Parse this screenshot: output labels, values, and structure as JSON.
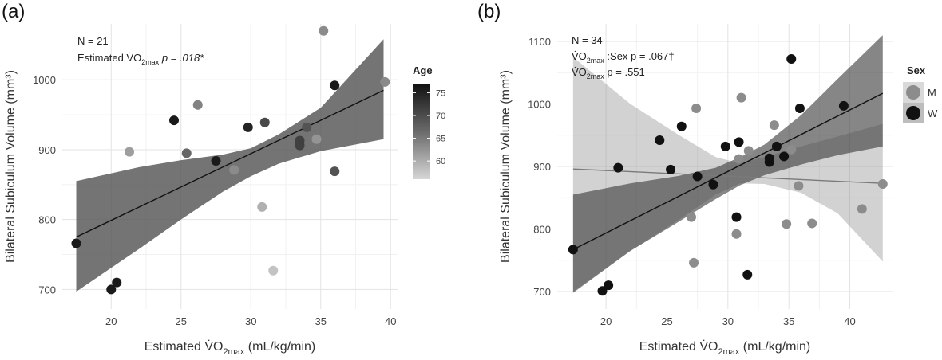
{
  "panel_a": {
    "label": "(a)",
    "annot_n": "N = 21",
    "annot_prefix": "Estimated V̇O",
    "annot_sub": "2max",
    "annot_p": " p = .018*",
    "legend": {
      "title": "Age",
      "ticks": [
        "75",
        "70",
        "65",
        "60"
      ],
      "min": 56,
      "max": 77
    }
  },
  "panel_b": {
    "label": "(b)",
    "annot_n": "N = 34",
    "annot2_prefix": "V̇O",
    "annot2_sub": "2max",
    "annot2_rest": " :Sex p = .067†",
    "annot3_prefix": "V̇O",
    "annot3_sub": "2max",
    "annot3_rest": " p = .551",
    "legend": {
      "title": "Sex",
      "items": [
        {
          "label": "M",
          "color": "#8c8c8c"
        },
        {
          "label": "W",
          "color": "#111111"
        }
      ]
    }
  },
  "chart_data": [
    {
      "type": "scatter",
      "panel": "a",
      "xlabel": "Estimated V̇O2max (mL/kg/min)",
      "ylabel": "Bilateral Subiculum Volume (mm³)",
      "xlim": [
        16.5,
        40.5
      ],
      "ylim": [
        672,
        1080
      ],
      "xticks": [
        "20",
        "25",
        "30",
        "35",
        "40"
      ],
      "yticks": [
        "700",
        "800",
        "900",
        "1000"
      ],
      "fit": {
        "x0": 17.5,
        "y0": 775,
        "x1": 39.5,
        "y1": 985
      },
      "band": [
        [
          17.5,
          697,
          855
        ],
        [
          22,
          758,
          875
        ],
        [
          25,
          800,
          885
        ],
        [
          28,
          840,
          893
        ],
        [
          30,
          862,
          902
        ],
        [
          32,
          880,
          922
        ],
        [
          35,
          898,
          960
        ],
        [
          39.5,
          915,
          1058
        ]
      ],
      "points": [
        {
          "x": 17.5,
          "y": 766,
          "age": 76
        },
        {
          "x": 20.0,
          "y": 700,
          "age": 76
        },
        {
          "x": 20.4,
          "y": 710,
          "age": 76
        },
        {
          "x": 21.3,
          "y": 897,
          "age": 62
        },
        {
          "x": 24.5,
          "y": 942,
          "age": 76
        },
        {
          "x": 25.4,
          "y": 895,
          "age": 68
        },
        {
          "x": 26.2,
          "y": 964,
          "age": 65
        },
        {
          "x": 27.5,
          "y": 884,
          "age": 76
        },
        {
          "x": 28.8,
          "y": 871,
          "age": 64
        },
        {
          "x": 29.8,
          "y": 932,
          "age": 75
        },
        {
          "x": 30.8,
          "y": 818,
          "age": 60
        },
        {
          "x": 31.0,
          "y": 939,
          "age": 71
        },
        {
          "x": 31.6,
          "y": 727,
          "age": 58
        },
        {
          "x": 33.5,
          "y": 906,
          "age": 72
        },
        {
          "x": 33.5,
          "y": 913,
          "age": 72
        },
        {
          "x": 34.0,
          "y": 932,
          "age": 70
        },
        {
          "x": 34.7,
          "y": 915,
          "age": 63
        },
        {
          "x": 35.2,
          "y": 1070,
          "age": 64
        },
        {
          "x": 36.0,
          "y": 992,
          "age": 76
        },
        {
          "x": 36.0,
          "y": 869,
          "age": 70
        },
        {
          "x": 39.6,
          "y": 997,
          "age": 64
        }
      ]
    },
    {
      "type": "scatter",
      "panel": "b",
      "xlabel": "Estimated V̇O2max (mL/kg/min)",
      "ylabel": "Bilateral Subiculum Volume (mm³)",
      "xlim": [
        16,
        43.5
      ],
      "ylim": [
        672,
        1128
      ],
      "xticks": [
        "20",
        "25",
        "30",
        "35",
        "40"
      ],
      "yticks": [
        "700",
        "800",
        "900",
        "1000",
        "1100"
      ],
      "fits": [
        {
          "sex": "M",
          "x0": 17.3,
          "y0": 896,
          "x1": 42.7,
          "y1": 873
        },
        {
          "sex": "W",
          "x0": 17.3,
          "y0": 767,
          "x1": 42.7,
          "y1": 1017
        }
      ],
      "bands": [
        {
          "sex": "M",
          "band": [
            [
              17.3,
              700,
              1075
            ],
            [
              22,
              765,
              1000
            ],
            [
              26,
              815,
              950
            ],
            [
              29,
              855,
              915
            ],
            [
              31,
              873,
              905
            ],
            [
              33,
              872,
              915
            ],
            [
              36,
              858,
              932
            ],
            [
              39,
              825,
              948
            ],
            [
              42.7,
              748,
              968
            ]
          ]
        },
        {
          "sex": "W",
          "band": [
            [
              17.3,
              698,
              855
            ],
            [
              22,
              765,
              873
            ],
            [
              26,
              812,
              885
            ],
            [
              29,
              848,
              898
            ],
            [
              31,
              870,
              915
            ],
            [
              33,
              886,
              935
            ],
            [
              36,
              903,
              982
            ],
            [
              39,
              918,
              1040
            ],
            [
              42.7,
              932,
              1110
            ]
          ]
        }
      ],
      "points": [
        {
          "x": 17.3,
          "y": 767,
          "sex": "W"
        },
        {
          "x": 19.7,
          "y": 701,
          "sex": "W"
        },
        {
          "x": 20.2,
          "y": 710,
          "sex": "W"
        },
        {
          "x": 21.0,
          "y": 898,
          "sex": "W"
        },
        {
          "x": 24.4,
          "y": 942,
          "sex": "W"
        },
        {
          "x": 25.3,
          "y": 895,
          "sex": "W"
        },
        {
          "x": 26.2,
          "y": 964,
          "sex": "W"
        },
        {
          "x": 27.0,
          "y": 819,
          "sex": "M"
        },
        {
          "x": 27.2,
          "y": 746,
          "sex": "M"
        },
        {
          "x": 27.4,
          "y": 993,
          "sex": "M"
        },
        {
          "x": 27.5,
          "y": 884,
          "sex": "W"
        },
        {
          "x": 28.8,
          "y": 871,
          "sex": "W"
        },
        {
          "x": 29.8,
          "y": 932,
          "sex": "W"
        },
        {
          "x": 30.7,
          "y": 792,
          "sex": "M"
        },
        {
          "x": 30.7,
          "y": 819,
          "sex": "W"
        },
        {
          "x": 30.9,
          "y": 939,
          "sex": "W"
        },
        {
          "x": 30.9,
          "y": 912,
          "sex": "M"
        },
        {
          "x": 31.1,
          "y": 1010,
          "sex": "M"
        },
        {
          "x": 31.6,
          "y": 727,
          "sex": "W"
        },
        {
          "x": 31.7,
          "y": 925,
          "sex": "M"
        },
        {
          "x": 33.4,
          "y": 907,
          "sex": "W"
        },
        {
          "x": 33.4,
          "y": 913,
          "sex": "W"
        },
        {
          "x": 33.8,
          "y": 966,
          "sex": "M"
        },
        {
          "x": 34.0,
          "y": 932,
          "sex": "W"
        },
        {
          "x": 34.6,
          "y": 916,
          "sex": "W"
        },
        {
          "x": 34.8,
          "y": 808,
          "sex": "M"
        },
        {
          "x": 35.2,
          "y": 927,
          "sex": "M"
        },
        {
          "x": 35.2,
          "y": 1072,
          "sex": "W"
        },
        {
          "x": 35.8,
          "y": 869,
          "sex": "M"
        },
        {
          "x": 35.9,
          "y": 993,
          "sex": "W"
        },
        {
          "x": 36.9,
          "y": 809,
          "sex": "M"
        },
        {
          "x": 39.5,
          "y": 997,
          "sex": "W"
        },
        {
          "x": 41.0,
          "y": 832,
          "sex": "M"
        },
        {
          "x": 42.7,
          "y": 872,
          "sex": "M"
        }
      ]
    }
  ]
}
